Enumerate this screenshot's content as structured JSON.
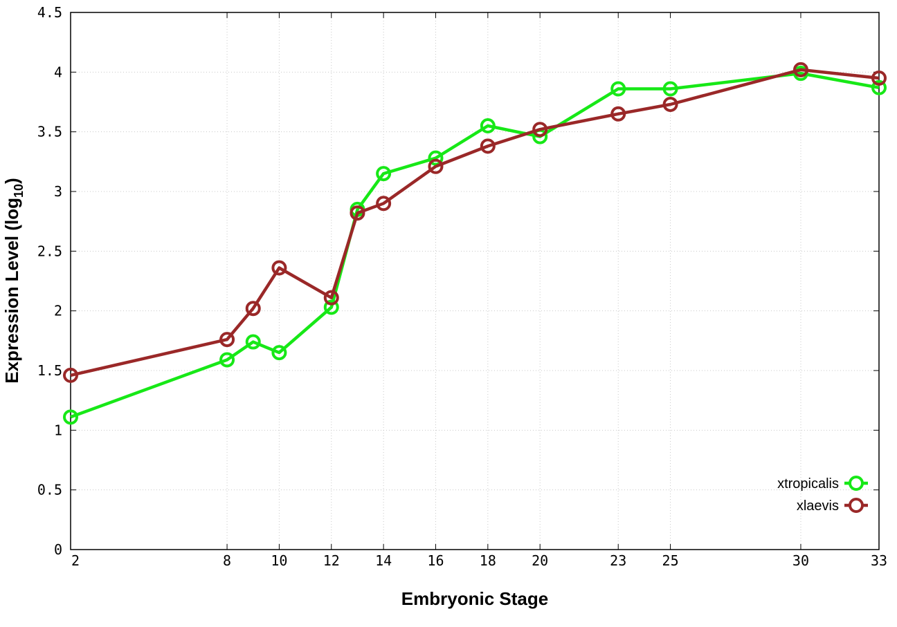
{
  "chart_data": {
    "type": "line",
    "title": "",
    "xlabel": "Embryonic Stage",
    "ylabel_main": "Expression Level (log",
    "ylabel_sub": "10",
    "ylabel_close": ")",
    "x": [
      2,
      8,
      9,
      10,
      12,
      13,
      14,
      16,
      18,
      20,
      23,
      25,
      30,
      33
    ],
    "x_ticks": [
      2,
      8,
      10,
      12,
      14,
      16,
      18,
      20,
      23,
      25,
      30,
      33
    ],
    "y_ticks": [
      "0",
      "0.5",
      "1",
      "1.5",
      "2",
      "2.5",
      "3",
      "3.5",
      "4",
      "4.5"
    ],
    "xlim": [
      2,
      33
    ],
    "ylim": [
      0,
      4.5
    ],
    "grid": true,
    "legend_position": "bottom-right",
    "series": [
      {
        "name": "xtropicalis",
        "color": "#17e817",
        "values": [
          1.11,
          1.59,
          1.74,
          1.65,
          2.03,
          2.85,
          3.15,
          3.28,
          3.55,
          3.46,
          3.86,
          3.86,
          3.99,
          3.87
        ]
      },
      {
        "name": "xlaevis",
        "color": "#9a2828",
        "values": [
          1.46,
          1.76,
          2.02,
          2.36,
          2.11,
          2.82,
          2.9,
          3.21,
          3.38,
          3.52,
          3.65,
          3.73,
          4.02,
          3.95
        ]
      }
    ]
  }
}
